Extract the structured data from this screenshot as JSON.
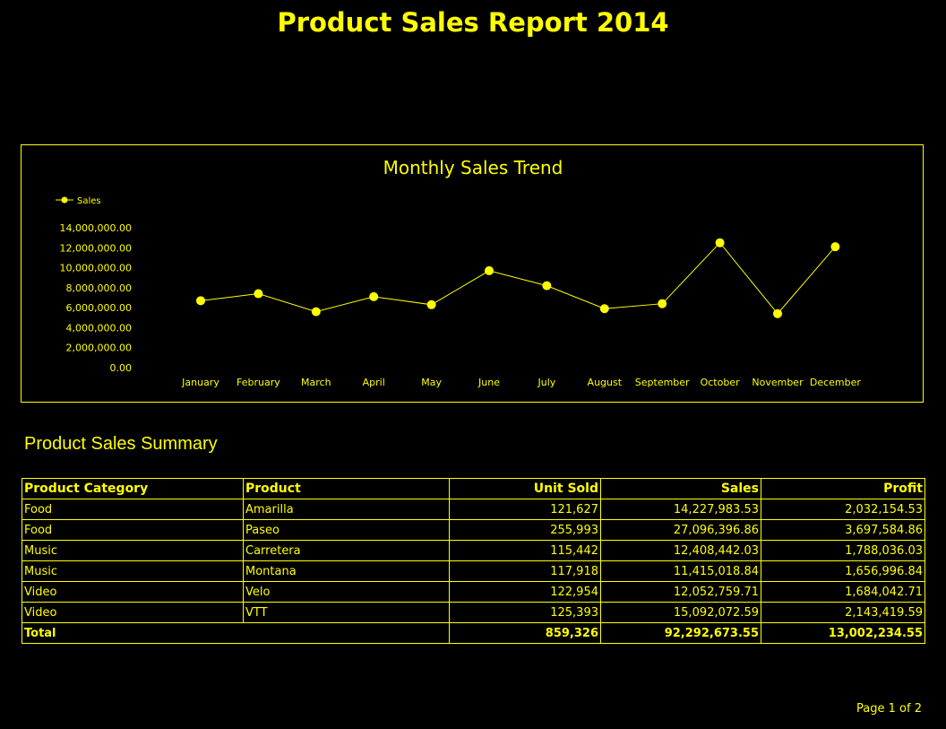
{
  "report": {
    "title": "Product Sales Report 2014"
  },
  "chart_data": {
    "type": "line",
    "title": "Monthly Sales Trend",
    "legend": [
      "Sales"
    ],
    "legend_position": "top-left",
    "categories": [
      "January",
      "February",
      "March",
      "April",
      "May",
      "June",
      "July",
      "August",
      "September",
      "October",
      "November",
      "December"
    ],
    "series": [
      {
        "name": "Sales",
        "values": [
          6700000,
          7400000,
          5600000,
          7100000,
          6300000,
          9700000,
          8200000,
          5900000,
          6400000,
          12500000,
          5400000,
          12100000
        ]
      }
    ],
    "y_ticks": [
      "0.00",
      "2,000,000.00",
      "4,000,000.00",
      "6,000,000.00",
      "8,000,000.00",
      "10,000,000.00",
      "12,000,000.00",
      "14,000,000.00"
    ],
    "ylim": [
      0,
      14000000
    ],
    "grid": false,
    "xlabel": "",
    "ylabel": ""
  },
  "summary": {
    "title": "Product Sales Summary",
    "headers": [
      "Product Category",
      "Product",
      "Unit Sold",
      "Sales",
      "Profit"
    ],
    "rows": [
      [
        "Food",
        "Amarilla",
        "121,627",
        "14,227,983.53",
        "2,032,154.53"
      ],
      [
        "Food",
        "Paseo",
        "255,993",
        "27,096,396.86",
        "3,697,584.86"
      ],
      [
        "Music",
        "Carretera",
        "115,442",
        "12,408,442.03",
        "1,788,036.03"
      ],
      [
        "Music",
        "Montana",
        "117,918",
        "11,415,018.84",
        "1,656,996.84"
      ],
      [
        "Video",
        "Velo",
        "122,954",
        "12,052,759.71",
        "1,684,042.71"
      ],
      [
        "Video",
        "VTT",
        "125,393",
        "15,092,072.59",
        "2,143,419.59"
      ]
    ],
    "total": {
      "label": "Total",
      "units": "859,326",
      "sales": "92,292,673.55",
      "profit": "13,002,234.55"
    }
  },
  "footer": {
    "page": "Page 1 of 2"
  },
  "colors": {
    "background": "#000000",
    "accent": "#ffff00"
  }
}
